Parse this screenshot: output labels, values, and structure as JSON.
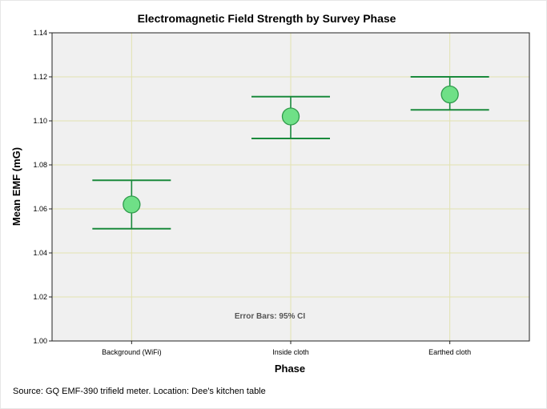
{
  "chart_data": {
    "type": "error-bar",
    "title": "Electromagnetic Field Strength by Survey Phase",
    "xlabel": "Phase",
    "ylabel": "Mean EMF (mG)",
    "categories": [
      "Background (WiFi)",
      "Inside cloth",
      "Earthed cloth"
    ],
    "means": [
      1.062,
      1.102,
      1.112
    ],
    "ci_lower": [
      1.051,
      1.092,
      1.105
    ],
    "ci_upper": [
      1.073,
      1.111,
      1.12
    ],
    "ylim": [
      1.0,
      1.14
    ],
    "yticks": [
      "1.00",
      "1.02",
      "1.04",
      "1.06",
      "1.08",
      "1.10",
      "1.12",
      "1.14"
    ],
    "grid": true,
    "annotation": "Error Bars: 95% CI",
    "colors": {
      "plot_background": "#f0f0f0",
      "grid": "#e2e2b0",
      "whisker": "#1a8a3c",
      "marker_fill": "#6fe087",
      "marker_stroke": "#2e9a4a"
    }
  },
  "footer": {
    "source": "Source: GQ EMF-390 trifield meter. Location: Dee's kitchen table"
  }
}
